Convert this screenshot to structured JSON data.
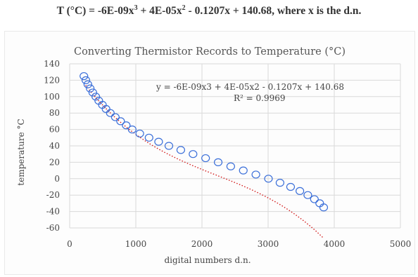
{
  "header": {
    "prefix": "T (°C) = -6E-09x",
    "exp3": "3",
    "part2": " + 4E-05x",
    "exp2": "2",
    "suffix": " - 0.1207x + 140.68, where x is the d.n."
  },
  "chart_data": {
    "type": "scatter",
    "title": "Converting Thermistor Records to Temperature (°C)",
    "xlabel": "digital numbers d.n.",
    "ylabel": "temperature °C",
    "xlim": [
      0,
      5000
    ],
    "ylim": [
      -60,
      140
    ],
    "xticks": [
      0,
      1000,
      2000,
      3000,
      4000,
      5000
    ],
    "yticks": [
      -60,
      -40,
      -20,
      0,
      20,
      40,
      60,
      80,
      100,
      120,
      140
    ],
    "grid": true,
    "legend": "none",
    "marker_color": "#3b6fd9",
    "trendline_color": "#d21c1c",
    "trendline": {
      "equation": "y = -6E-09x3 + 4E-05x2 - 0.1207x + 140.68",
      "r_squared": "R² = 0.9969",
      "coefficients": [
        -6e-09,
        4e-05,
        -0.1207,
        140.68
      ]
    },
    "points": [
      [
        215,
        125
      ],
      [
        245,
        120
      ],
      [
        275,
        115
      ],
      [
        310,
        110
      ],
      [
        350,
        105
      ],
      [
        395,
        100
      ],
      [
        440,
        95
      ],
      [
        495,
        90
      ],
      [
        550,
        85
      ],
      [
        615,
        80
      ],
      [
        690,
        75
      ],
      [
        770,
        70
      ],
      [
        855,
        65
      ],
      [
        945,
        60
      ],
      [
        1060,
        55
      ],
      [
        1200,
        50
      ],
      [
        1345,
        45
      ],
      [
        1500,
        40
      ],
      [
        1680,
        35
      ],
      [
        1865,
        30
      ],
      [
        2055,
        25
      ],
      [
        2245,
        20
      ],
      [
        2435,
        15
      ],
      [
        2625,
        10
      ],
      [
        2815,
        5
      ],
      [
        3005,
        0
      ],
      [
        3180,
        -5
      ],
      [
        3340,
        -10
      ],
      [
        3480,
        -15
      ],
      [
        3600,
        -20
      ],
      [
        3700,
        -25
      ],
      [
        3780,
        -30
      ],
      [
        3840,
        -35
      ]
    ]
  }
}
